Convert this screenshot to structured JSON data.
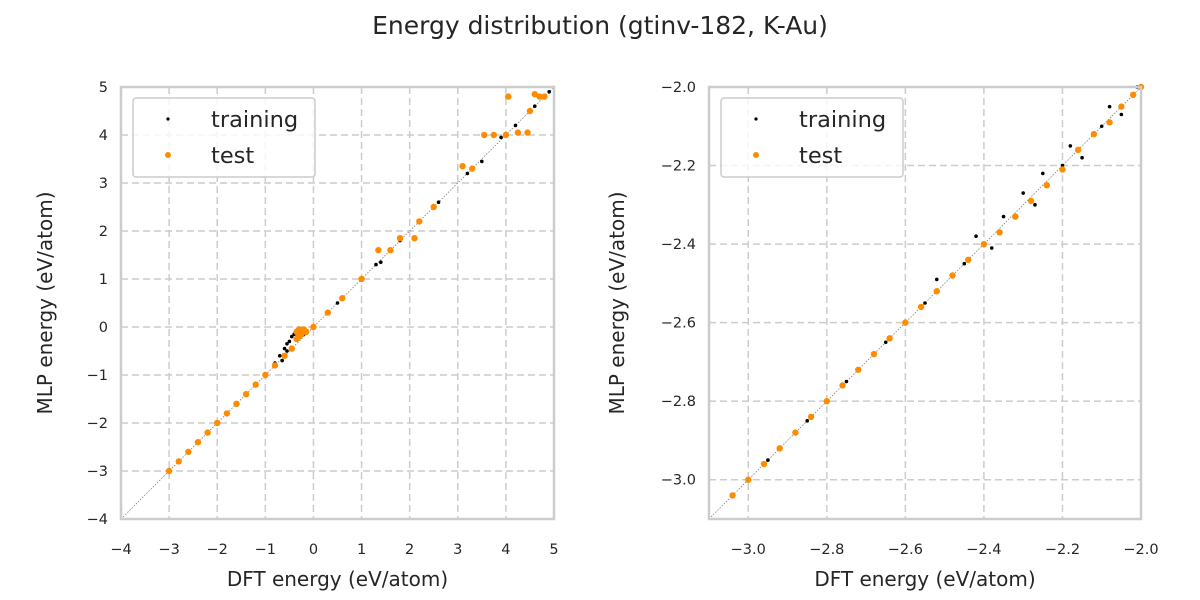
{
  "title": "Energy distribution (gtinv-182, K-Au)",
  "chart_data": [
    {
      "type": "scatter",
      "xlabel": "DFT energy (eV/atom)",
      "ylabel": "MLP energy (eV/atom)",
      "xlim": [
        -4,
        5
      ],
      "ylim": [
        -4,
        5
      ],
      "xticks": [
        -4,
        -3,
        -2,
        -1,
        0,
        1,
        2,
        3,
        4,
        5
      ],
      "yticks": [
        -4,
        -3,
        -2,
        -1,
        0,
        1,
        2,
        3,
        4,
        5
      ],
      "xtick_labels": [
        "−4",
        "−3",
        "−2",
        "−1",
        "0",
        "1",
        "2",
        "3",
        "4",
        "5"
      ],
      "ytick_labels": [
        "−4",
        "−3",
        "−2",
        "−1",
        "0",
        "1",
        "2",
        "3",
        "4",
        "5"
      ],
      "grid": true,
      "legend_position": "top-left",
      "reference_line": "y = x",
      "series": [
        {
          "name": "training",
          "color": "#000000",
          "points": [
            [
              -3.0,
              -3.0
            ],
            [
              -2.6,
              -2.6
            ],
            [
              -2.2,
              -2.2
            ],
            [
              -1.8,
              -1.8
            ],
            [
              -1.4,
              -1.4
            ],
            [
              -1.0,
              -1.0
            ],
            [
              -0.8,
              -0.75
            ],
            [
              -0.7,
              -0.6
            ],
            [
              -0.6,
              -0.45
            ],
            [
              -0.55,
              -0.35
            ],
            [
              -0.5,
              -0.3
            ],
            [
              -0.45,
              -0.2
            ],
            [
              -0.4,
              -0.15
            ],
            [
              -0.35,
              -0.1
            ],
            [
              -0.3,
              -0.05
            ],
            [
              -0.55,
              -0.5
            ],
            [
              -0.65,
              -0.7
            ],
            [
              -0.2,
              -0.15
            ],
            [
              0.0,
              0.0
            ],
            [
              0.5,
              0.5
            ],
            [
              1.0,
              1.0
            ],
            [
              1.3,
              1.3
            ],
            [
              1.4,
              1.35
            ],
            [
              1.8,
              1.8
            ],
            [
              2.2,
              2.2
            ],
            [
              2.6,
              2.6
            ],
            [
              3.2,
              3.2
            ],
            [
              3.5,
              3.45
            ],
            [
              3.9,
              3.95
            ],
            [
              4.2,
              4.2
            ],
            [
              4.6,
              4.6
            ],
            [
              4.9,
              4.9
            ]
          ]
        },
        {
          "name": "test",
          "color": "#ff8c00",
          "points": [
            [
              -3.0,
              -3.0
            ],
            [
              -2.8,
              -2.8
            ],
            [
              -2.6,
              -2.6
            ],
            [
              -2.4,
              -2.4
            ],
            [
              -2.2,
              -2.2
            ],
            [
              -2.0,
              -2.0
            ],
            [
              -1.8,
              -1.8
            ],
            [
              -1.6,
              -1.6
            ],
            [
              -1.4,
              -1.4
            ],
            [
              -1.2,
              -1.2
            ],
            [
              -1.0,
              -1.0
            ],
            [
              -0.8,
              -0.8
            ],
            [
              -0.6,
              -0.6
            ],
            [
              -0.45,
              -0.45
            ],
            [
              -0.35,
              -0.1
            ],
            [
              -0.3,
              -0.05
            ],
            [
              -0.25,
              -0.1
            ],
            [
              -0.3,
              -0.2
            ],
            [
              -0.2,
              -0.05
            ],
            [
              -0.35,
              -0.25
            ],
            [
              -0.25,
              -0.15
            ],
            [
              -0.15,
              -0.1
            ],
            [
              0.0,
              0.0
            ],
            [
              0.3,
              0.3
            ],
            [
              0.6,
              0.6
            ],
            [
              1.0,
              1.0
            ],
            [
              1.35,
              1.6
            ],
            [
              1.6,
              1.6
            ],
            [
              1.8,
              1.85
            ],
            [
              2.1,
              1.85
            ],
            [
              2.2,
              2.2
            ],
            [
              2.5,
              2.5
            ],
            [
              3.1,
              3.35
            ],
            [
              3.3,
              3.3
            ],
            [
              3.55,
              4.0
            ],
            [
              3.75,
              4.0
            ],
            [
              4.0,
              4.0
            ],
            [
              4.05,
              4.8
            ],
            [
              4.25,
              4.05
            ],
            [
              4.45,
              4.05
            ],
            [
              4.5,
              4.5
            ],
            [
              4.6,
              4.85
            ],
            [
              4.7,
              4.8
            ],
            [
              4.8,
              4.8
            ]
          ]
        }
      ]
    },
    {
      "type": "scatter",
      "xlabel": "DFT energy (eV/atom)",
      "ylabel": "MLP energy (eV/atom)",
      "xlim": [
        -3.1,
        -2.0
      ],
      "ylim": [
        -3.1,
        -2.0
      ],
      "xticks": [
        -3.0,
        -2.8,
        -2.6,
        -2.4,
        -2.2,
        -2.0
      ],
      "yticks": [
        -3.0,
        -2.8,
        -2.6,
        -2.4,
        -2.2,
        -2.0
      ],
      "xtick_labels": [
        "−3.0",
        "−2.8",
        "−2.6",
        "−2.4",
        "−2.2",
        "−2.0"
      ],
      "ytick_labels": [
        "−3.0",
        "−2.8",
        "−2.6",
        "−2.4",
        "−2.2",
        "−2.0"
      ],
      "grid": true,
      "legend_position": "top-left",
      "reference_line": "y = x",
      "series": [
        {
          "name": "training",
          "color": "#000000",
          "points": [
            [
              -3.04,
              -3.04
            ],
            [
              -2.95,
              -2.95
            ],
            [
              -2.85,
              -2.85
            ],
            [
              -2.75,
              -2.75
            ],
            [
              -2.65,
              -2.65
            ],
            [
              -2.55,
              -2.55
            ],
            [
              -2.52,
              -2.49
            ],
            [
              -2.45,
              -2.45
            ],
            [
              -2.42,
              -2.38
            ],
            [
              -2.38,
              -2.41
            ],
            [
              -2.35,
              -2.33
            ],
            [
              -2.3,
              -2.27
            ],
            [
              -2.27,
              -2.3
            ],
            [
              -2.25,
              -2.22
            ],
            [
              -2.2,
              -2.2
            ],
            [
              -2.18,
              -2.15
            ],
            [
              -2.15,
              -2.18
            ],
            [
              -2.1,
              -2.1
            ],
            [
              -2.08,
              -2.05
            ],
            [
              -2.05,
              -2.07
            ],
            [
              -2.02,
              -2.02
            ],
            [
              -2.01,
              -2.0
            ]
          ]
        },
        {
          "name": "test",
          "color": "#ff8c00",
          "points": [
            [
              -3.04,
              -3.04
            ],
            [
              -3.0,
              -3.0
            ],
            [
              -2.96,
              -2.96
            ],
            [
              -2.92,
              -2.92
            ],
            [
              -2.88,
              -2.88
            ],
            [
              -2.84,
              -2.84
            ],
            [
              -2.8,
              -2.8
            ],
            [
              -2.76,
              -2.76
            ],
            [
              -2.72,
              -2.72
            ],
            [
              -2.68,
              -2.68
            ],
            [
              -2.64,
              -2.64
            ],
            [
              -2.6,
              -2.6
            ],
            [
              -2.56,
              -2.56
            ],
            [
              -2.52,
              -2.52
            ],
            [
              -2.48,
              -2.48
            ],
            [
              -2.44,
              -2.44
            ],
            [
              -2.4,
              -2.4
            ],
            [
              -2.36,
              -2.37
            ],
            [
              -2.32,
              -2.33
            ],
            [
              -2.28,
              -2.29
            ],
            [
              -2.24,
              -2.25
            ],
            [
              -2.2,
              -2.21
            ],
            [
              -2.16,
              -2.16
            ],
            [
              -2.12,
              -2.12
            ],
            [
              -2.08,
              -2.09
            ],
            [
              -2.05,
              -2.05
            ],
            [
              -2.02,
              -2.02
            ],
            [
              -2.0,
              -2.0
            ]
          ]
        }
      ]
    }
  ]
}
